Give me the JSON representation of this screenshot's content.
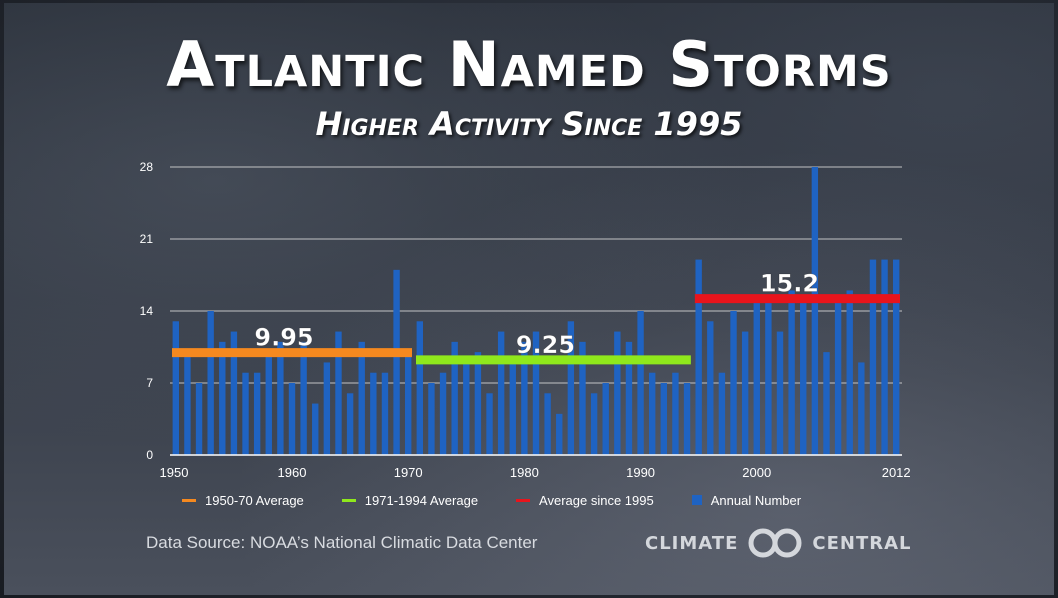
{
  "slide": {
    "title": "Atlantic Named Storms",
    "subtitle": "Higher Activity Since 1995",
    "source": "Data Source: NOAA’s National Climatic Data Center",
    "logo_left": "CLIMATE",
    "logo_right": "CENTRAL"
  },
  "colors": {
    "bar": "#1f63c2",
    "avg1": "#f5891f",
    "avg2": "#8fe81c",
    "avg3": "#e8141c",
    "grid": "#d9d9d9",
    "axis_text": "#ffffff"
  },
  "chart_data": {
    "type": "bar",
    "title": "Atlantic Named Storms",
    "subtitle": "Higher Activity Since 1995",
    "xlabel": "",
    "ylabel": "",
    "ylim": [
      0,
      28
    ],
    "yticks": [
      "0",
      "7",
      "14",
      "21",
      "28"
    ],
    "xticks": [
      "1950",
      "1960",
      "1970",
      "1980",
      "1990",
      "2000",
      "2012"
    ],
    "grid": true,
    "legend_position": "bottom",
    "series": [
      {
        "name": "Annual Number",
        "x": [
          1950,
          1951,
          1952,
          1953,
          1954,
          1955,
          1956,
          1957,
          1958,
          1959,
          1960,
          1961,
          1962,
          1963,
          1964,
          1965,
          1966,
          1967,
          1968,
          1969,
          1970,
          1971,
          1972,
          1973,
          1974,
          1975,
          1976,
          1977,
          1978,
          1979,
          1980,
          1981,
          1982,
          1983,
          1984,
          1985,
          1986,
          1987,
          1988,
          1989,
          1990,
          1991,
          1992,
          1993,
          1994,
          1995,
          1996,
          1997,
          1998,
          1999,
          2000,
          2001,
          2002,
          2003,
          2004,
          2005,
          2006,
          2007,
          2008,
          2009,
          2010,
          2011,
          2012
        ],
        "values": [
          13,
          10,
          7,
          14,
          11,
          12,
          8,
          8,
          10,
          11,
          7,
          11,
          5,
          9,
          12,
          6,
          11,
          8,
          8,
          18,
          10,
          13,
          7,
          8,
          11,
          9,
          10,
          6,
          12,
          9,
          11,
          12,
          6,
          4,
          13,
          11,
          6,
          7,
          12,
          11,
          14,
          8,
          7,
          8,
          7,
          19,
          13,
          8,
          14,
          12,
          15,
          15,
          12,
          16,
          15,
          28,
          10,
          15,
          16,
          9,
          19,
          19,
          19
        ]
      }
    ],
    "averages": [
      {
        "name": "1950-70 Average",
        "value": 9.95,
        "label": "9.95",
        "x_start": 1950,
        "x_end": 1970
      },
      {
        "name": "1971-1994 Average",
        "value": 9.25,
        "label": "9.25",
        "x_start": 1971,
        "x_end": 1994
      },
      {
        "name": "Average since 1995",
        "value": 15.2,
        "label": "15.2",
        "x_start": 1995,
        "x_end": 2012
      }
    ],
    "legend": [
      "1950-70 Average",
      "1971-1994 Average",
      "Average since 1995",
      "Annual Number"
    ]
  }
}
